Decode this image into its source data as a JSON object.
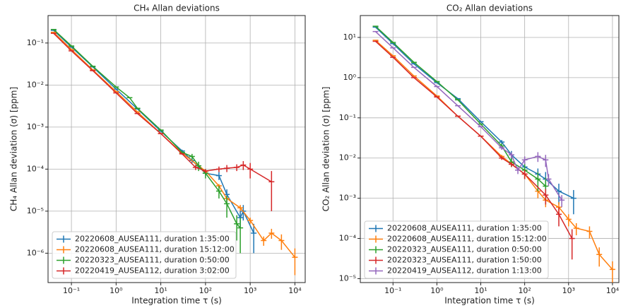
{
  "chart_data": [
    {
      "type": "line",
      "title": "CH₄ Allan deviations",
      "x_label": "Integration time τ (s)",
      "y_label": "CH₄ Allan deviation (σ) [ppm]",
      "log_x": true,
      "log_y": true,
      "grid": true,
      "legend": "lower left",
      "xlim": [
        0.03,
        17000
      ],
      "ylim": [
        2e-07,
        0.45
      ],
      "xticks": [
        {
          "value": 0.1,
          "label": "10⁻¹"
        },
        {
          "value": 1,
          "label": "10⁰"
        },
        {
          "value": 10,
          "label": "10¹"
        },
        {
          "value": 100,
          "label": "10²"
        },
        {
          "value": 1000,
          "label": "10³"
        },
        {
          "value": 10000,
          "label": "10⁴"
        }
      ],
      "yticks": [
        {
          "value": 1e-06,
          "label": "10⁻⁶"
        },
        {
          "value": 1e-05,
          "label": "10⁻⁵"
        },
        {
          "value": 0.0001,
          "label": "10⁻⁴"
        },
        {
          "value": 0.001,
          "label": "10⁻³"
        },
        {
          "value": 0.01,
          "label": "10⁻²"
        },
        {
          "value": 0.1,
          "label": "10⁻¹"
        }
      ],
      "series": [
        {
          "name": "20220608_AUSEA111, duration 1:35:00",
          "color": "#1f77b4",
          "x": [
            0.04,
            0.1,
            0.3,
            1,
            3,
            10,
            30,
            50,
            100,
            200,
            300,
            600,
            700,
            1200
          ],
          "values": [
            0.2,
            0.08,
            0.027,
            0.008,
            0.0027,
            0.0008,
            0.00027,
            0.00016,
            8e-05,
            7e-05,
            2.5e-05,
            7e-06,
            1e-05,
            3e-06
          ],
          "errors": [
            0,
            0,
            0,
            0,
            0,
            0,
            2e-05,
            2e-05,
            1e-05,
            1.5e-05,
            8e-06,
            3e-06,
            4e-06,
            2e-06
          ]
        },
        {
          "name": "20220608_AUSEA111, duration 15:12:00",
          "color": "#ff7f0e",
          "x": [
            0.04,
            0.1,
            0.3,
            1,
            3,
            10,
            30,
            100,
            200,
            300,
            600,
            1000,
            2000,
            3000,
            5000,
            10000
          ],
          "values": [
            0.18,
            0.07,
            0.023,
            0.007,
            0.0023,
            0.0007,
            0.00024,
            9e-05,
            4e-05,
            2e-05,
            1.2e-05,
            6e-06,
            2e-06,
            3e-06,
            2e-06,
            8e-07
          ],
          "errors": [
            0,
            0,
            0,
            0,
            0,
            0,
            1e-05,
            5e-06,
            4e-06,
            3e-06,
            2e-06,
            1e-06,
            5e-07,
            8e-07,
            8e-07,
            5e-07
          ]
        },
        {
          "name": "20220323_AUSEA111, duration 0:50:00",
          "color": "#2ca02c",
          "x": [
            0.04,
            0.1,
            0.3,
            1,
            2,
            3,
            10,
            30,
            50,
            70,
            100,
            200,
            300,
            500,
            600
          ],
          "values": [
            0.21,
            0.085,
            0.028,
            0.009,
            0.005,
            0.0028,
            0.00085,
            0.00025,
            0.0002,
            0.00012,
            8e-05,
            3e-05,
            1.5e-05,
            5e-06,
            4e-06
          ],
          "errors": [
            0,
            0,
            0,
            0,
            0,
            0,
            0,
            2e-05,
            3e-05,
            3e-05,
            2e-05,
            1e-05,
            8e-06,
            3e-06,
            3e-06
          ]
        },
        {
          "name": "20220419_AUSEA112, duration 3:02:00",
          "color": "#d62728",
          "x": [
            0.04,
            0.1,
            0.3,
            1,
            3,
            10,
            30,
            60,
            100,
            200,
            300,
            500,
            700,
            1000,
            3000
          ],
          "values": [
            0.17,
            0.065,
            0.022,
            0.0065,
            0.0021,
            0.0007,
            0.00023,
            0.00011,
            9e-05,
            0.0001,
            0.000105,
            0.00011,
            0.000125,
            0.0001,
            5e-05
          ],
          "errors": [
            0,
            0,
            0,
            0,
            0,
            0,
            1e-05,
            1.5e-05,
            1e-05,
            1.5e-05,
            2e-05,
            2e-05,
            3e-05,
            4e-05,
            4e-05
          ]
        }
      ]
    },
    {
      "type": "line",
      "title": "CO₂ Allan deviations",
      "x_label": "Integration time τ (s)",
      "y_label": "CO₂ Allan deviation (σ) [ppm]",
      "log_x": true,
      "log_y": true,
      "grid": true,
      "legend": "lower left",
      "xlim": [
        0.018,
        14000
      ],
      "ylim": [
        8e-06,
        35
      ],
      "xticks": [
        {
          "value": 0.1,
          "label": "10⁻¹"
        },
        {
          "value": 1,
          "label": "10⁰"
        },
        {
          "value": 10,
          "label": "10¹"
        },
        {
          "value": 100,
          "label": "10²"
        },
        {
          "value": 1000,
          "label": "10³"
        },
        {
          "value": 10000,
          "label": "10⁴"
        }
      ],
      "yticks": [
        {
          "value": 1e-05,
          "label": "10⁻⁵"
        },
        {
          "value": 0.0001,
          "label": "10⁻⁴"
        },
        {
          "value": 0.001,
          "label": "10⁻³"
        },
        {
          "value": 0.01,
          "label": "10⁻²"
        },
        {
          "value": 0.1,
          "label": "10⁻¹"
        },
        {
          "value": 1,
          "label": "10⁰"
        },
        {
          "value": 10,
          "label": "10¹"
        }
      ],
      "series": [
        {
          "name": "20220608_AUSEA111, duration 1:35:00",
          "color": "#1f77b4",
          "x": [
            0.04,
            0.1,
            0.3,
            1,
            3,
            10,
            30,
            50,
            100,
            200,
            300,
            600,
            1300
          ],
          "values": [
            18,
            7,
            2.2,
            0.75,
            0.3,
            0.08,
            0.025,
            0.012,
            0.006,
            0.004,
            0.003,
            0.0015,
            0.001
          ],
          "errors": [
            0,
            0,
            0,
            0,
            0,
            0,
            0.003,
            0.003,
            0.002,
            0.0015,
            0.0015,
            0.0008,
            0.0006
          ]
        },
        {
          "name": "20220608_AUSEA111, duration 15:12:00",
          "color": "#ff7f0e",
          "x": [
            0.04,
            0.1,
            0.3,
            1,
            3,
            10,
            30,
            100,
            200,
            300,
            600,
            1000,
            1500,
            3000,
            5000,
            10000
          ],
          "values": [
            8.5,
            3.5,
            1.1,
            0.35,
            0.11,
            0.035,
            0.011,
            0.004,
            0.0015,
            0.0009,
            0.0006,
            0.0003,
            0.00018,
            0.00015,
            4e-05,
            1.7e-05
          ],
          "errors": [
            0,
            0,
            0,
            0,
            0,
            0,
            0.001,
            0.0008,
            0.0005,
            0.0003,
            0.0002,
            0.0001,
            6e-05,
            5e-05,
            2e-05,
            1e-05
          ]
        },
        {
          "name": "20220323_AUSEA111, duration 0:50:00",
          "color": "#2ca02c",
          "x": [
            0.04,
            0.1,
            0.3,
            1,
            3,
            10,
            30,
            50,
            100,
            200,
            300
          ],
          "values": [
            19,
            7.5,
            2.4,
            0.8,
            0.28,
            0.07,
            0.02,
            0.008,
            0.005,
            0.003,
            0.002
          ],
          "errors": [
            0,
            0,
            0,
            0,
            0,
            0,
            0.003,
            0.002,
            0.002,
            0.0015,
            0.0013
          ]
        },
        {
          "name": "20220323_AUSEA111, duration 1:50:00",
          "color": "#d62728",
          "x": [
            0.04,
            0.1,
            0.3,
            1,
            3,
            10,
            30,
            50,
            100,
            300,
            600,
            1200
          ],
          "values": [
            8,
            3.2,
            1.0,
            0.33,
            0.11,
            0.035,
            0.01,
            0.007,
            0.004,
            0.0012,
            0.0004,
            0.0001
          ],
          "errors": [
            0,
            0,
            0,
            0,
            0,
            0,
            0.001,
            0.001,
            0.001,
            0.0005,
            0.0002,
            7e-05
          ]
        },
        {
          "name": "20220419_AUSEA112, duration 1:13:00",
          "color": "#9467bd",
          "x": [
            0.04,
            0.1,
            0.3,
            1,
            3,
            10,
            30,
            50,
            70,
            100,
            200,
            300,
            350,
            700
          ],
          "values": [
            14,
            5.5,
            1.8,
            0.6,
            0.2,
            0.06,
            0.018,
            0.012,
            0.005,
            0.009,
            0.011,
            0.009,
            0.003,
            0.0009
          ],
          "errors": [
            0,
            0,
            0,
            0,
            0,
            0,
            0.002,
            0.002,
            0.001,
            0.002,
            0.003,
            0.003,
            0.001,
            0.0003
          ]
        }
      ]
    }
  ]
}
